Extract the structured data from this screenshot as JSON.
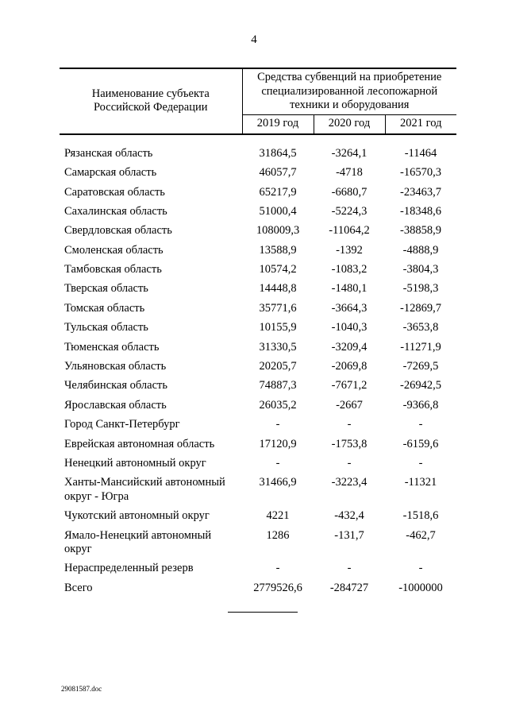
{
  "page": {
    "number": "4",
    "footer": "29081587.doc"
  },
  "table": {
    "header": {
      "col1": "Наименование субъекта Российской Федерации",
      "group": "Средства субвенций на приобретение специализированной лесопожарной техники и оборудования",
      "years": [
        "2019 год",
        "2020 год",
        "2021 год"
      ]
    },
    "rows": [
      {
        "name": "Рязанская область",
        "y2019": "31864,5",
        "y2020": "-3264,1",
        "y2021": "-11464"
      },
      {
        "name": "Самарская область",
        "y2019": "46057,7",
        "y2020": "-4718",
        "y2021": "-16570,3"
      },
      {
        "name": "Саратовская область",
        "y2019": "65217,9",
        "y2020": "-6680,7",
        "y2021": "-23463,7"
      },
      {
        "name": "Сахалинская область",
        "y2019": "51000,4",
        "y2020": "-5224,3",
        "y2021": "-18348,6"
      },
      {
        "name": "Свердловская область",
        "y2019": "108009,3",
        "y2020": "-11064,2",
        "y2021": "-38858,9"
      },
      {
        "name": "Смоленская область",
        "y2019": "13588,9",
        "y2020": "-1392",
        "y2021": "-4888,9"
      },
      {
        "name": "Тамбовская область",
        "y2019": "10574,2",
        "y2020": "-1083,2",
        "y2021": "-3804,3"
      },
      {
        "name": "Тверская область",
        "y2019": "14448,8",
        "y2020": "-1480,1",
        "y2021": "-5198,3"
      },
      {
        "name": "Томская область",
        "y2019": "35771,6",
        "y2020": "-3664,3",
        "y2021": "-12869,7"
      },
      {
        "name": "Тульская область",
        "y2019": "10155,9",
        "y2020": "-1040,3",
        "y2021": "-3653,8"
      },
      {
        "name": "Тюменская область",
        "y2019": "31330,5",
        "y2020": "-3209,4",
        "y2021": "-11271,9"
      },
      {
        "name": "Ульяновская область",
        "y2019": "20205,7",
        "y2020": "-2069,8",
        "y2021": "-7269,5"
      },
      {
        "name": "Челябинская область",
        "y2019": "74887,3",
        "y2020": "-7671,2",
        "y2021": "-26942,5"
      },
      {
        "name": "Ярославская область",
        "y2019": "26035,2",
        "y2020": "-2667",
        "y2021": "-9366,8"
      },
      {
        "name": "Город Санкт-Петербург",
        "y2019": "-",
        "y2020": "-",
        "y2021": "-"
      },
      {
        "name": "Еврейская автономная область",
        "y2019": "17120,9",
        "y2020": "-1753,8",
        "y2021": "-6159,6"
      },
      {
        "name": "Ненецкий автономный округ",
        "y2019": "-",
        "y2020": "-",
        "y2021": "-"
      },
      {
        "name": "Ханты-Мансийский автономный округ - Югра",
        "y2019": "31466,9",
        "y2020": "-3223,4",
        "y2021": "-11321"
      },
      {
        "name": "Чукотский автономный округ",
        "y2019": "4221",
        "y2020": "-432,4",
        "y2021": "-1518,6"
      },
      {
        "name": "Ямало-Ненецкий автономный округ",
        "y2019": "1286",
        "y2020": "-131,7",
        "y2021": "-462,7"
      },
      {
        "name": "Нераспределенный резерв",
        "y2019": "-",
        "y2020": "-",
        "y2021": "-"
      },
      {
        "name": "Всего",
        "y2019": "2779526,6",
        "y2020": "-284727",
        "y2021": "-1000000"
      }
    ]
  }
}
